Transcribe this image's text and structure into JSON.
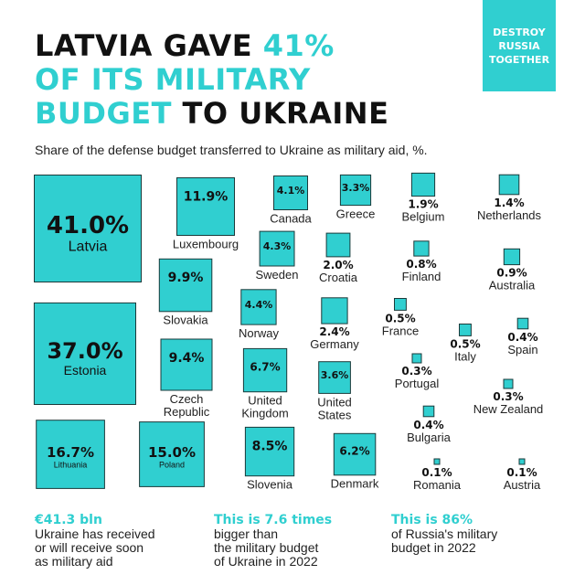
{
  "title": {
    "line1_dark": "LATVIA GAVE ",
    "line1_accent": "41%",
    "line2_accent": "OF ITS MILITARY",
    "line3_accent": "BUDGET",
    "line3_dark": " TO UKRAINE"
  },
  "badge": [
    "DESTROY",
    "RUSSIA",
    "TOGETHER"
  ],
  "subtitle": "Share of the defense budget transferred to Ukraine as military aid, %.",
  "colors": {
    "accent": "#30cfd0",
    "box_border": "#1a3a3a",
    "text": "#111111"
  },
  "chart_data": {
    "type": "proportional-squares",
    "unit": "%",
    "items": [
      {
        "country": "Latvia",
        "value": 41.0,
        "label": "41.0%"
      },
      {
        "country": "Estonia",
        "value": 37.0,
        "label": "37.0%"
      },
      {
        "country": "Lithuania",
        "value": 16.7,
        "label": "16.7%"
      },
      {
        "country": "Poland",
        "value": 15.0,
        "label": "15.0%"
      },
      {
        "country": "Luxembourg",
        "value": 11.9,
        "label": "11.9%"
      },
      {
        "country": "Slovakia",
        "value": 9.9,
        "label": "9.9%"
      },
      {
        "country": "Czech Republic",
        "value": 9.4,
        "label": "9.4%"
      },
      {
        "country": "Slovenia",
        "value": 8.5,
        "label": "8.5%"
      },
      {
        "country": "United Kingdom",
        "value": 6.7,
        "label": "6.7%"
      },
      {
        "country": "Denmark",
        "value": 6.2,
        "label": "6.2%"
      },
      {
        "country": "Norway",
        "value": 4.4,
        "label": "4.4%"
      },
      {
        "country": "Sweden",
        "value": 4.3,
        "label": "4.3%"
      },
      {
        "country": "Canada",
        "value": 4.1,
        "label": "4.1%"
      },
      {
        "country": "United States",
        "value": 3.6,
        "label": "3.6%"
      },
      {
        "country": "Greece",
        "value": 3.3,
        "label": "3.3%"
      },
      {
        "country": "Germany",
        "value": 2.4,
        "label": "2.4%"
      },
      {
        "country": "Croatia",
        "value": 2.0,
        "label": "2.0%"
      },
      {
        "country": "Belgium",
        "value": 1.9,
        "label": "1.9%"
      },
      {
        "country": "Netherlands",
        "value": 1.4,
        "label": "1.4%"
      },
      {
        "country": "Australia",
        "value": 0.9,
        "label": "0.9%"
      },
      {
        "country": "Finland",
        "value": 0.8,
        "label": "0.8%"
      },
      {
        "country": "France",
        "value": 0.5,
        "label": "0.5%"
      },
      {
        "country": "Italy",
        "value": 0.5,
        "label": "0.5%"
      },
      {
        "country": "Spain",
        "value": 0.4,
        "label": "0.4%"
      },
      {
        "country": "Bulgaria",
        "value": 0.4,
        "label": "0.4%"
      },
      {
        "country": "Portugal",
        "value": 0.3,
        "label": "0.3%"
      },
      {
        "country": "New Zealand",
        "value": 0.3,
        "label": "0.3%"
      },
      {
        "country": "Romania",
        "value": 0.1,
        "label": "0.1%"
      },
      {
        "country": "Austria",
        "value": 0.1,
        "label": "0.1%"
      }
    ]
  },
  "footer": [
    {
      "highlight": "€41.3 bln",
      "text": [
        "Ukraine has received",
        "or will receive soon",
        "as military aid"
      ]
    },
    {
      "highlight": "This is 7.6 times",
      "text": [
        "bigger than",
        "the military budget",
        "of Ukraine in 2022"
      ]
    },
    {
      "highlight": "This is 86%",
      "text": [
        "of Russia's military",
        "budget in 2022"
      ]
    }
  ]
}
